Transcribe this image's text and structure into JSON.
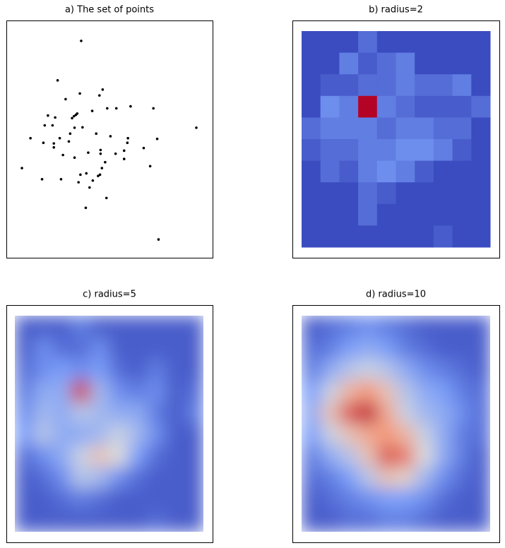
{
  "chart_data": [
    {
      "type": "scatter",
      "title": "a) The set of points",
      "color": "#000000",
      "xlim": [
        0,
        100
      ],
      "ylim": [
        0,
        100
      ],
      "x": [
        35.3,
        22.9,
        46.6,
        34.6,
        44.9,
        27.1,
        49.0,
        53.8,
        61.3,
        73.3,
        41.1,
        33.2,
        32.5,
        31.5,
        30.5,
        17.8,
        21.6,
        16.1,
        20.2,
        31.8,
        36.0,
        95.9,
        43.2,
        29.5,
        50.7,
        8.6,
        24.0,
        59.9,
        75.3,
        28.8,
        15.4,
        20.9,
        59.6,
        20.9,
        68.2,
        57.9,
        45.5,
        39.0,
        53.4,
        45.5,
        25.7,
        31.8,
        57.9,
        47.9,
        46.2,
        71.6,
        4.1,
        38.0,
        34.9,
        45.2,
        44.2,
        14.7,
        24.7,
        41.4,
        33.9,
        39.7,
        48.6,
        37.7,
        76.0
      ],
      "y": [
        95.5,
        77.4,
        73.2,
        71.4,
        70.5,
        68.8,
        64.6,
        64.6,
        65.5,
        64.6,
        63.4,
        62.2,
        61.6,
        61.0,
        60.1,
        61.3,
        60.4,
        56.8,
        56.8,
        55.7,
        55.9,
        55.7,
        53.0,
        53.0,
        51.8,
        50.9,
        50.9,
        50.9,
        50.6,
        49.4,
        48.8,
        48.5,
        48.8,
        46.7,
        46.4,
        45.2,
        45.5,
        44.3,
        43.8,
        43.8,
        43.2,
        42.0,
        41.4,
        39.9,
        37.2,
        38.1,
        37.2,
        34.8,
        34.2,
        34.2,
        33.6,
        32.1,
        32.1,
        31.5,
        30.7,
        28.3,
        23.5,
        19.0,
        4.5
      ]
    },
    {
      "type": "heatmap",
      "title": "b) radius=2",
      "clim": [
        0,
        1
      ],
      "smooth": false,
      "colormap": [
        "#3b4cc0",
        "#7b9ff9",
        "#dddddd",
        "#f49a7b",
        "#b40426"
      ],
      "values": [
        [
          0,
          0,
          0,
          0.1,
          0,
          0,
          0,
          0,
          0,
          0
        ],
        [
          0,
          0,
          0.15,
          0.05,
          0.1,
          0.15,
          0,
          0,
          0,
          0
        ],
        [
          0,
          0.05,
          0.05,
          0.1,
          0.1,
          0.15,
          0.1,
          0.1,
          0.15,
          0
        ],
        [
          0,
          0.2,
          0.15,
          1,
          0.15,
          0.1,
          0.05,
          0.05,
          0.05,
          0.1
        ],
        [
          0.1,
          0.15,
          0.15,
          0.15,
          0.1,
          0.15,
          0.15,
          0.1,
          0.1,
          0
        ],
        [
          0.05,
          0.1,
          0.1,
          0.15,
          0.15,
          0.2,
          0.2,
          0.15,
          0.05,
          0
        ],
        [
          0,
          0.1,
          0.05,
          0.15,
          0.2,
          0.15,
          0.05,
          0,
          0,
          0
        ],
        [
          0,
          0,
          0,
          0.1,
          0.05,
          0,
          0,
          0,
          0,
          0
        ],
        [
          0,
          0,
          0,
          0.1,
          0,
          0,
          0,
          0,
          0,
          0
        ],
        [
          0,
          0,
          0,
          0,
          0,
          0,
          0,
          0.05,
          0,
          0
        ]
      ]
    },
    {
      "type": "heatmap",
      "title": "c) radius=5",
      "clim": [
        0,
        1
      ],
      "smooth": true,
      "colormap": [
        "#3b4cc0",
        "#7b9ff9",
        "#dddddd",
        "#f49a7b",
        "#b40426"
      ],
      "values": [
        [
          0.05,
          0.05,
          0.05,
          0.15,
          0.05,
          0.05,
          0.05,
          0.05,
          0.05,
          0.05
        ],
        [
          0.05,
          0.2,
          0.1,
          0.1,
          0.2,
          0.05,
          0.05,
          0.05,
          0.05,
          0.05
        ],
        [
          0.1,
          0.2,
          0.25,
          0.2,
          0.25,
          0.1,
          0.05,
          0.15,
          0.05,
          0.05
        ],
        [
          0.15,
          0.3,
          0.3,
          0.9,
          0.35,
          0.2,
          0.15,
          0.2,
          0.05,
          0.1
        ],
        [
          0.2,
          0.35,
          0.3,
          0.4,
          0.35,
          0.3,
          0.3,
          0.15,
          0.05,
          0.15
        ],
        [
          0.25,
          0.4,
          0.3,
          0.3,
          0.35,
          0.45,
          0.35,
          0.2,
          0.05,
          0.05
        ],
        [
          0.1,
          0.2,
          0.3,
          0.45,
          0.6,
          0.5,
          0.25,
          0.1,
          0.05,
          0.05
        ],
        [
          0.05,
          0.1,
          0.2,
          0.4,
          0.35,
          0.2,
          0.1,
          0.05,
          0.05,
          0.05
        ],
        [
          0.05,
          0.05,
          0.1,
          0.15,
          0.1,
          0.05,
          0.05,
          0.05,
          0.05,
          0.05
        ],
        [
          0.05,
          0.05,
          0.05,
          0.05,
          0.05,
          0.05,
          0.05,
          0.1,
          0.05,
          0.05
        ]
      ]
    },
    {
      "type": "heatmap",
      "title": "d) radius=10",
      "clim": [
        0,
        1
      ],
      "smooth": true,
      "colormap": [
        "#3b4cc0",
        "#7b9ff9",
        "#dddddd",
        "#f49a7b",
        "#b40426"
      ],
      "values": [
        [
          0.05,
          0.1,
          0.15,
          0.2,
          0.15,
          0.1,
          0.05,
          0.05,
          0.05,
          0.05
        ],
        [
          0.1,
          0.15,
          0.25,
          0.3,
          0.25,
          0.15,
          0.1,
          0.05,
          0.05,
          0.05
        ],
        [
          0.15,
          0.3,
          0.4,
          0.45,
          0.4,
          0.3,
          0.2,
          0.15,
          0.1,
          0.05
        ],
        [
          0.25,
          0.45,
          0.65,
          0.75,
          0.6,
          0.4,
          0.3,
          0.25,
          0.15,
          0.1
        ],
        [
          0.3,
          0.6,
          0.85,
          0.95,
          0.7,
          0.45,
          0.35,
          0.3,
          0.2,
          0.1
        ],
        [
          0.25,
          0.45,
          0.6,
          0.7,
          0.75,
          0.65,
          0.45,
          0.3,
          0.15,
          0.1
        ],
        [
          0.15,
          0.3,
          0.4,
          0.6,
          0.85,
          0.8,
          0.5,
          0.3,
          0.15,
          0.05
        ],
        [
          0.1,
          0.15,
          0.25,
          0.4,
          0.6,
          0.55,
          0.35,
          0.2,
          0.1,
          0.05
        ],
        [
          0.05,
          0.1,
          0.15,
          0.2,
          0.25,
          0.25,
          0.2,
          0.1,
          0.05,
          0.05
        ],
        [
          0.05,
          0.05,
          0.1,
          0.1,
          0.15,
          0.15,
          0.1,
          0.05,
          0.05,
          0.05
        ]
      ]
    }
  ]
}
